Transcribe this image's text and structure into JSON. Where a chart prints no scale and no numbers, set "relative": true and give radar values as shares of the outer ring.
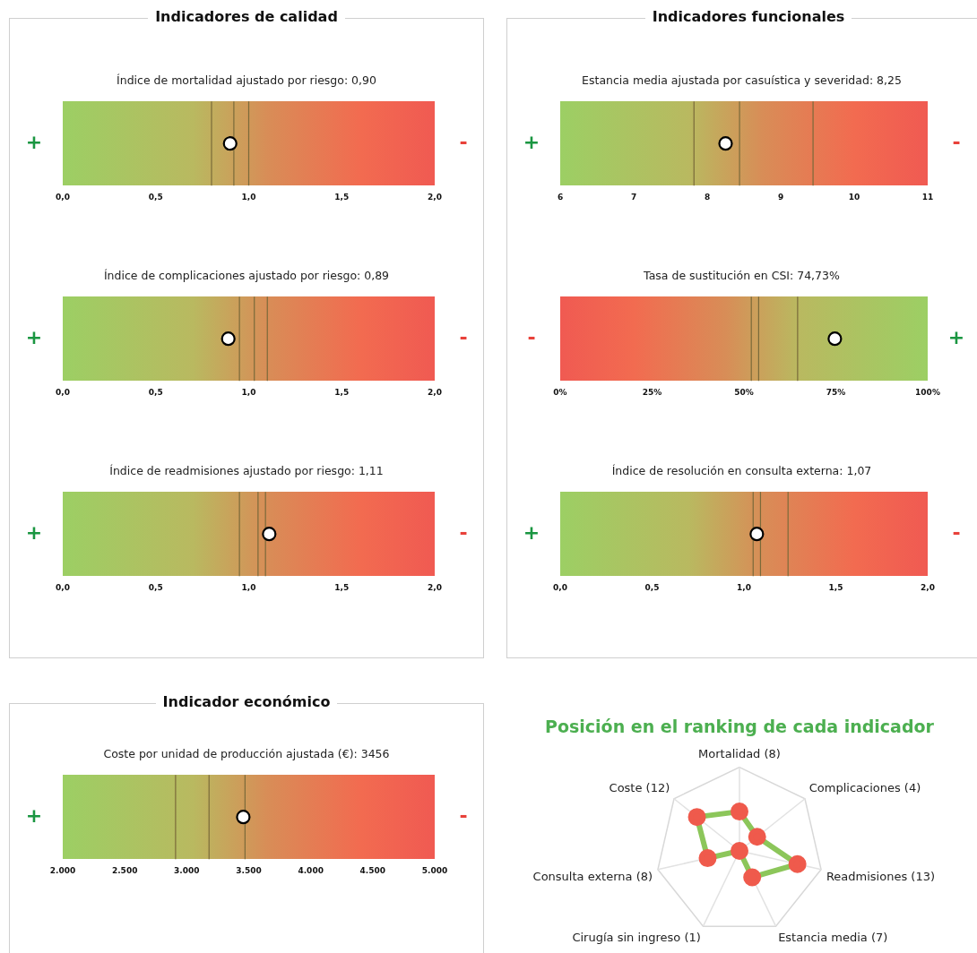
{
  "chart_data": [
    {
      "type": "scatter",
      "title": "Indicadores de calidad",
      "subtitle": "Índice de mortalidad ajustado por riesgo: 0,90",
      "orientation": "horizontal",
      "categories": [
        null
      ],
      "values": [
        0.9
      ],
      "color": "#ffffff",
      "marker": "circle",
      "xlim": [
        0,
        2
      ],
      "tick_labels": "x",
      "xticks": [
        {
          "value": 0,
          "label": "0,0"
        },
        {
          "value": 0.5,
          "label": "0,5"
        },
        {
          "value": 1,
          "label": "1,0"
        },
        {
          "value": 1.5,
          "label": "1,5"
        },
        {
          "value": 2,
          "label": "2,0"
        }
      ],
      "bands": [
        {
          "axis": "x",
          "from": 0,
          "to": 2,
          "color": "#9ccf64"
        }
      ],
      "ref_lines": [
        {
          "axis": "x",
          "value": 0.8,
          "color": "#7a6a3a"
        },
        {
          "axis": "x",
          "value": 0.92,
          "color": "#7a6a3a"
        },
        {
          "axis": "x",
          "value": 1.0,
          "color": "#7a6a3a"
        }
      ],
      "annotations": [
        "+",
        "-"
      ]
    },
    {
      "type": "scatter",
      "subtitle": "Índice de complicaciones ajustado por riesgo: 0,89",
      "orientation": "horizontal",
      "categories": [
        null
      ],
      "values": [
        0.89
      ],
      "color": "#ffffff",
      "marker": "circle",
      "xlim": [
        0,
        2
      ],
      "tick_labels": "x",
      "xticks": [
        {
          "value": 0,
          "label": "0,0"
        },
        {
          "value": 0.5,
          "label": "0,5"
        },
        {
          "value": 1,
          "label": "1,0"
        },
        {
          "value": 1.5,
          "label": "1,5"
        },
        {
          "value": 2,
          "label": "2,0"
        }
      ],
      "bands": [
        {
          "axis": "x",
          "from": 0,
          "to": 2,
          "color": "#9ccf64"
        }
      ],
      "ref_lines": [
        {
          "axis": "x",
          "value": 0.95,
          "color": "#7a6a3a"
        },
        {
          "axis": "x",
          "value": 1.03,
          "color": "#7a6a3a"
        },
        {
          "axis": "x",
          "value": 1.1,
          "color": "#7a6a3a"
        }
      ],
      "annotations": [
        "+",
        "-"
      ]
    },
    {
      "type": "scatter",
      "subtitle": "Índice de readmisiones ajustado por riesgo: 1,11",
      "orientation": "horizontal",
      "categories": [
        null
      ],
      "values": [
        1.11
      ],
      "color": "#ffffff",
      "marker": "circle",
      "xlim": [
        0,
        2
      ],
      "tick_labels": "x",
      "xticks": [
        {
          "value": 0,
          "label": "0,0"
        },
        {
          "value": 0.5,
          "label": "0,5"
        },
        {
          "value": 1,
          "label": "1,0"
        },
        {
          "value": 1.5,
          "label": "1,5"
        },
        {
          "value": 2,
          "label": "2,0"
        }
      ],
      "bands": [
        {
          "axis": "x",
          "from": 0,
          "to": 2,
          "color": "#9ccf64"
        }
      ],
      "ref_lines": [
        {
          "axis": "x",
          "value": 0.95,
          "color": "#7a6a3a"
        },
        {
          "axis": "x",
          "value": 1.05,
          "color": "#7a6a3a"
        },
        {
          "axis": "x",
          "value": 1.09,
          "color": "#7a6a3a"
        }
      ],
      "annotations": [
        "+",
        "-"
      ]
    },
    {
      "type": "scatter",
      "title": "Indicadores funcionales",
      "subtitle": "Estancia media ajustada por casuística y severidad: 8,25",
      "orientation": "horizontal",
      "categories": [
        null
      ],
      "values": [
        8.25
      ],
      "color": "#ffffff",
      "marker": "circle",
      "xlim": [
        6,
        11
      ],
      "tick_labels": "x",
      "xticks": [
        6,
        7,
        8,
        9,
        10,
        11
      ],
      "bands": [
        {
          "axis": "x",
          "from": 6,
          "to": 11,
          "color": "#9ccf64"
        }
      ],
      "ref_lines": [
        {
          "axis": "x",
          "value": 7.82,
          "color": "#7a6a3a"
        },
        {
          "axis": "x",
          "value": 8.44,
          "color": "#7a6a3a"
        },
        {
          "axis": "x",
          "value": 9.44,
          "color": "#7a6a3a"
        }
      ],
      "annotations": [
        "+",
        "-"
      ]
    },
    {
      "type": "scatter",
      "subtitle": "Tasa de sustitución en CSI: 74,73%",
      "orientation": "horizontal",
      "categories": [
        null
      ],
      "values": [
        74.73
      ],
      "color": "#ffffff",
      "marker": "circle",
      "xlim": [
        0,
        100
      ],
      "tick_labels": "x",
      "xticks": [
        {
          "value": 0,
          "label": "0%"
        },
        {
          "value": 25,
          "label": "25%"
        },
        {
          "value": 50,
          "label": "50%"
        },
        {
          "value": 75,
          "label": "75%"
        },
        {
          "value": 100,
          "label": "100%"
        }
      ],
      "bands": [
        {
          "axis": "x",
          "from": 100,
          "to": 0,
          "color": "#9ccf64"
        }
      ],
      "ref_lines": [
        {
          "axis": "x",
          "value": 52,
          "color": "#7a6a3a"
        },
        {
          "axis": "x",
          "value": 54,
          "color": "#7a6a3a"
        },
        {
          "axis": "x",
          "value": 64.6,
          "color": "#7a6a3a"
        }
      ],
      "annotations": [
        "+",
        "-"
      ]
    },
    {
      "type": "scatter",
      "subtitle": "Índice de resolución en consulta externa: 1,07",
      "orientation": "horizontal",
      "categories": [
        null
      ],
      "values": [
        1.07
      ],
      "color": "#ffffff",
      "marker": "circle",
      "xlim": [
        0,
        2
      ],
      "tick_labels": "x",
      "xticks": [
        {
          "value": 0,
          "label": "0,0"
        },
        {
          "value": 0.5,
          "label": "0,5"
        },
        {
          "value": 1,
          "label": "1,0"
        },
        {
          "value": 1.5,
          "label": "1,5"
        },
        {
          "value": 2,
          "label": "2,0"
        }
      ],
      "bands": [
        {
          "axis": "x",
          "from": 0,
          "to": 2,
          "color": "#9ccf64"
        }
      ],
      "ref_lines": [
        {
          "axis": "x",
          "value": 1.05,
          "color": "#7a6a3a"
        },
        {
          "axis": "x",
          "value": 1.09,
          "color": "#7a6a3a"
        },
        {
          "axis": "x",
          "value": 1.24,
          "color": "#7a6a3a"
        }
      ],
      "annotations": [
        "+",
        "-"
      ]
    },
    {
      "type": "scatter",
      "title": "Indicador económico",
      "subtitle": "Coste por unidad de producción ajustada (€): 3456",
      "orientation": "horizontal",
      "categories": [
        null
      ],
      "values": [
        3456
      ],
      "color": "#ffffff",
      "marker": "circle",
      "xlim": [
        2000,
        5000
      ],
      "tick_labels": "x",
      "xticks": [
        {
          "value": 2000,
          "label": "2.000"
        },
        {
          "value": 2500,
          "label": "2.500"
        },
        {
          "value": 3000,
          "label": "3.000"
        },
        {
          "value": 3500,
          "label": "3.500"
        },
        {
          "value": 4000,
          "label": "4.000"
        },
        {
          "value": 4500,
          "label": "4.500"
        },
        {
          "value": 5000,
          "label": "5.000"
        }
      ],
      "bands": [
        {
          "axis": "x",
          "from": 2000,
          "to": 5000,
          "color": "#9ccf64"
        }
      ],
      "ref_lines": [
        {
          "axis": "x",
          "value": 2910,
          "color": "#7a6a3a"
        },
        {
          "axis": "x",
          "value": 3180,
          "color": "#7a6a3a"
        },
        {
          "axis": "x",
          "value": 3470,
          "color": "#7a6a3a"
        }
      ],
      "annotations": [
        "+",
        "-"
      ]
    },
    {
      "type": "radar",
      "title": "Posición en el ranking de cada indicador",
      "categories": [
        "Mortalidad (8)",
        "Complicaciones (4)",
        "Readmisiones (13)",
        "Estancia media (7)",
        "Cirugía sin ingreso (1)",
        "Consulta externa (8)",
        "Coste (12)"
      ],
      "relative": true,
      "grid": true,
      "marker": "circle",
      "series": [
        {
          "color": "#8cc65a",
          "values": [
            0.47,
            0.27,
            0.71,
            0.35,
            0,
            0.39,
            0.65
          ]
        }
      ]
    }
  ]
}
